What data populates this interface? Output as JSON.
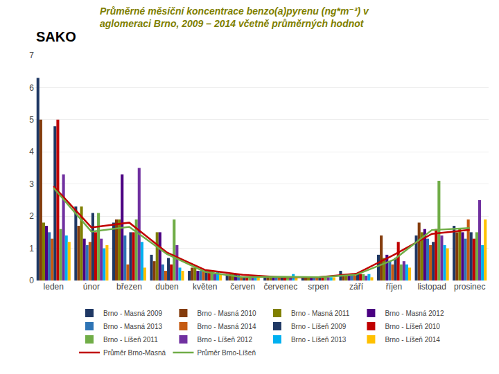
{
  "chart_data": {
    "type": "bar",
    "title": "Průměrné měsíční koncentrace benzo(a)pyrenu (ng*m⁻³) v",
    "subtitle": "aglomeraci Brno, 2009 – 2014 včetně průměrných hodnot",
    "annotations": [
      {
        "text": "SAKO"
      }
    ],
    "categories": [
      "leden",
      "únor",
      "březen",
      "duben",
      "květen",
      "červen",
      "červenec",
      "srpen",
      "září",
      "říjen",
      "listopad",
      "prosinec"
    ],
    "series": [
      {
        "name": "Brno - Masná 2009",
        "color": "#1F3864",
        "values": [
          6.3,
          2.3,
          1.8,
          0.8,
          0.3,
          0.2,
          0.1,
          0.1,
          0.3,
          0.8,
          1.4,
          1.7
        ]
      },
      {
        "name": "Brno - Masná 2010",
        "color": "#843C0C",
        "values": [
          5.0,
          1.7,
          1.9,
          0.6,
          0.4,
          0.2,
          0.1,
          0.1,
          0.2,
          1.4,
          1.8,
          1.5
        ]
      },
      {
        "name": "Brno - Masná 2011",
        "color": "#7F7F00",
        "values": [
          1.8,
          2.3,
          1.9,
          1.5,
          0.4,
          0.2,
          0.1,
          0.1,
          0.2,
          0.7,
          1.5,
          1.6
        ]
      },
      {
        "name": "Brno - Masná 2012",
        "color": "#4B0082",
        "values": [
          1.7,
          1.3,
          3.3,
          1.5,
          0.3,
          0.2,
          0.1,
          0.1,
          0.2,
          0.8,
          1.6,
          1.5
        ]
      },
      {
        "name": "Brno - Masná 2013",
        "color": "#2E74B5",
        "values": [
          1.5,
          1.1,
          1.4,
          0.5,
          0.3,
          0.2,
          0.1,
          0.1,
          0.2,
          0.6,
          1.3,
          1.3
        ]
      },
      {
        "name": "Brno - Masná 2014",
        "color": "#C55A11",
        "values": [
          1.3,
          1.2,
          0.5,
          0.3,
          0.3,
          0.1,
          0.1,
          0.1,
          0.15,
          0.5,
          1.1,
          1.9
        ]
      },
      {
        "name": "Brno - Líšeň 2009",
        "color": "#1F3864",
        "values": [
          4.8,
          2.1,
          1.5,
          0.7,
          0.3,
          0.1,
          0.1,
          0.1,
          0.2,
          0.7,
          1.2,
          1.5
        ]
      },
      {
        "name": "Brno - Líšeň 2010",
        "color": "#C00000",
        "values": [
          5.0,
          1.5,
          1.5,
          0.5,
          0.3,
          0.1,
          0.1,
          0.1,
          0.2,
          1.2,
          1.6,
          1.3
        ]
      },
      {
        "name": "Brno - Líšeň 2011",
        "color": "#70AD47",
        "values": [
          1.6,
          2.1,
          1.9,
          1.9,
          0.3,
          0.1,
          0.1,
          0.1,
          0.2,
          0.5,
          3.1,
          1.5
        ]
      },
      {
        "name": "Brno - Líšeň 2012",
        "color": "#7030A0",
        "values": [
          3.3,
          1.3,
          3.5,
          1.1,
          0.2,
          0.1,
          0.1,
          0.1,
          0.15,
          0.6,
          1.4,
          2.5
        ]
      },
      {
        "name": "Brno - Líšeň 2013",
        "color": "#00B0F0",
        "values": [
          1.4,
          1.0,
          1.2,
          0.4,
          0.3,
          0.1,
          0.2,
          0.1,
          0.2,
          0.5,
          1.1,
          1.1
        ]
      },
      {
        "name": "Brno - Líšeň 2014",
        "color": "#FFC000",
        "values": [
          1.2,
          1.1,
          0.4,
          0.3,
          0.2,
          0.1,
          0.1,
          0.1,
          0.1,
          0.4,
          1.0,
          1.9
        ]
      },
      {
        "name": "Průměr Brno-Masná",
        "type": "line",
        "color": "#C00000",
        "values": [
          2.93,
          1.65,
          1.8,
          0.87,
          0.33,
          0.18,
          0.1,
          0.1,
          0.21,
          0.8,
          1.45,
          1.58
        ]
      },
      {
        "name": "Průměr Brno-Líšeň",
        "type": "line",
        "color": "#70AD47",
        "values": [
          2.88,
          1.52,
          1.67,
          0.82,
          0.27,
          0.1,
          0.12,
          0.1,
          0.18,
          0.65,
          1.57,
          1.63
        ]
      }
    ],
    "ylim": [
      0,
      7
    ],
    "yticks": [
      0,
      1,
      2,
      3,
      4,
      5,
      6,
      7
    ],
    "grid": true,
    "legend": "bottom"
  }
}
